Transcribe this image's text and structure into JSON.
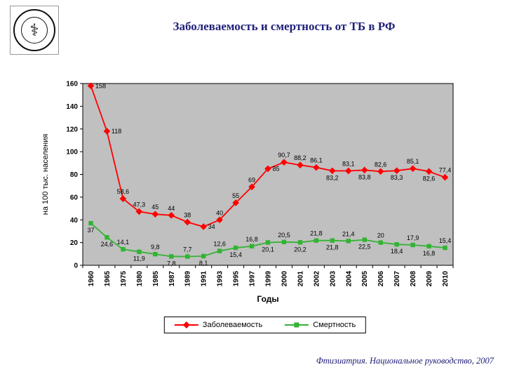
{
  "slide": {
    "title": "Заболеваемость и смертность от ТБ в РФ",
    "source": "Фтизиатрия. Национальное руководство, 2007",
    "accent_color": "#20207a"
  },
  "icons": {
    "logo_emblem": "⚕"
  },
  "chart_data": {
    "type": "line",
    "title": "Заболеваемость и смертность от ТБ в РФ",
    "xlabel": "Годы",
    "ylabel": "на 100 тыс. населения",
    "ylim": [
      0,
      160
    ],
    "ytick_step": 20,
    "grid": "off",
    "plot_bg": "#c0c0c0",
    "legend_position": "bottom",
    "categories": [
      "1960",
      "1965",
      "1975",
      "1980",
      "1985",
      "1987",
      "1989",
      "1991",
      "1993",
      "1995",
      "1997",
      "1999",
      "2000",
      "2001",
      "2002",
      "2003",
      "2004",
      "2005",
      "2006",
      "2007",
      "2008",
      "2009",
      "2010"
    ],
    "series": [
      {
        "name": "Заболеваемость",
        "color": "#ff0000",
        "marker": "diamond",
        "values": [
          158,
          118,
          58.6,
          47.3,
          45,
          44,
          38,
          34,
          40,
          55,
          69,
          85,
          90.7,
          88.2,
          86.1,
          83.2,
          83.1,
          83.8,
          82.6,
          83.3,
          85.1,
          82.6,
          77.4
        ],
        "labels": [
          "158",
          "118",
          "58,6",
          "47,3",
          "45",
          "44",
          "38",
          "34",
          "40",
          "55",
          "69",
          "85",
          "90,7",
          "88,2",
          "86,1",
          "83,2",
          "83,1",
          "83,8",
          "82,6",
          "83,3",
          "85,1",
          "82,6",
          "77,4"
        ],
        "label_side": [
          "right",
          "right",
          "above",
          "above",
          "above",
          "above",
          "above",
          "right",
          "above",
          "above",
          "above",
          "right",
          "above",
          "above",
          "above",
          "below",
          "above",
          "below",
          "above",
          "below",
          "above",
          "below",
          "above"
        ]
      },
      {
        "name": "Смертность",
        "color": "#33b333",
        "marker": "square",
        "values": [
          37,
          24.6,
          14.1,
          11.9,
          9.8,
          7.8,
          7.7,
          8.1,
          12.6,
          15.4,
          16.8,
          20.1,
          20.5,
          20.2,
          21.8,
          21.8,
          21.4,
          22.5,
          20,
          18.4,
          17.9,
          16.8,
          15.4
        ],
        "labels": [
          "37",
          "24,6",
          "14,1",
          "11,9",
          "9,8",
          "7,8",
          "7,7",
          "8,1",
          "12,6",
          "15,4",
          "16,8",
          "20,1",
          "20,5",
          "20,2",
          "21,8",
          "21,8",
          "21,4",
          "22,5",
          "20",
          "18,4",
          "17,9",
          "16,8",
          "15,4"
        ],
        "label_side": [
          "below",
          "below",
          "above",
          "below",
          "above",
          "below",
          "above",
          "below",
          "above",
          "below",
          "above",
          "below",
          "above",
          "below",
          "above",
          "below",
          "above",
          "below",
          "above",
          "below",
          "above",
          "below",
          "above"
        ]
      }
    ]
  }
}
